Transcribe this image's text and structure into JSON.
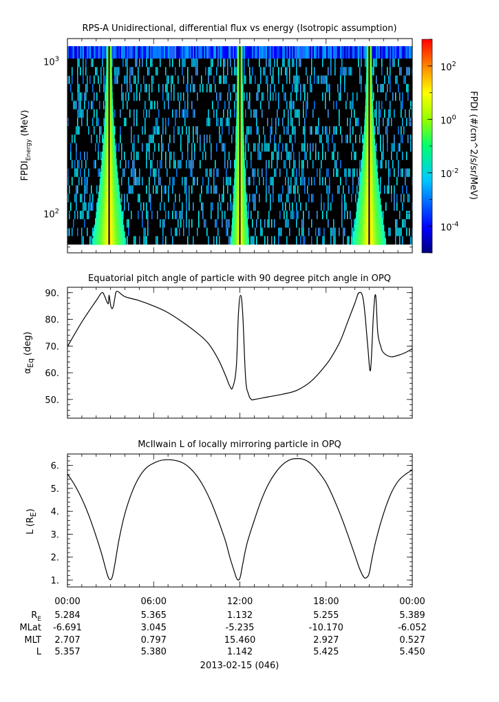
{
  "chart_data": [
    {
      "type": "heatmap",
      "title": "RPS-A Unidirectional, differential flux vs energy (Isotropic assumption)",
      "ylabel_main": "FPDI",
      "ylabel_sub": "Energy",
      "ylabel_unit": "(MeV)",
      "yscale": "log",
      "ylim": [
        55,
        1400
      ],
      "y_ticks": [
        {
          "value": 100,
          "base": "10",
          "exp": "2"
        },
        {
          "value": 1000,
          "base": "10",
          "exp": "3"
        }
      ],
      "colorbar": {
        "label": "FPDI (#/cm^2/s/sr/MeV)",
        "scale": "log",
        "range_exp": [
          -5,
          3
        ],
        "ticks": [
          {
            "exp": -4,
            "base": "10",
            "label": "-4"
          },
          {
            "exp": -2,
            "base": "10",
            "label": "-2"
          },
          {
            "exp": 0,
            "base": "10",
            "label": "0"
          },
          {
            "exp": 2,
            "base": "10",
            "label": "2"
          }
        ]
      },
      "bright_bands_hours": [
        2.9,
        12.0,
        21.0
      ]
    },
    {
      "type": "line",
      "title": "Equatorial pitch angle of particle with 90 degree pitch angle in OPQ",
      "ylabel": "α",
      "ylabel_sub": "Eq",
      "ylabel_unit": "(deg)",
      "ylim": [
        43,
        92
      ],
      "y_ticks": [
        50,
        60,
        70,
        80,
        90
      ],
      "y_tick_labels": [
        "50.",
        "60.",
        "70.",
        "80.",
        "90."
      ],
      "x_hours": [
        0,
        1,
        2,
        2.4,
        2.6,
        2.75,
        2.85,
        2.9,
        3.0,
        3.1,
        3.2,
        3.3,
        3.45,
        4,
        5,
        6,
        7,
        8,
        9,
        9.8,
        10.5,
        11,
        11.3,
        11.5,
        11.75,
        11.9,
        12.05,
        12.2,
        12.4,
        12.6,
        12.8,
        13,
        14,
        15,
        16,
        17,
        18,
        18.5,
        19,
        19.5,
        20,
        20.3,
        20.6,
        20.9,
        21.05,
        21.15,
        21.3,
        21.45,
        21.6,
        21.8,
        22,
        22.5,
        23,
        23.5,
        24
      ],
      "values": [
        69.8,
        79,
        87,
        90,
        88.5,
        86.5,
        86,
        89,
        85.5,
        84,
        85,
        88,
        90.5,
        88.5,
        87,
        85,
        82.5,
        79,
        75,
        71,
        65,
        59,
        55,
        54.5,
        62,
        82,
        89,
        82,
        58,
        52,
        50,
        50,
        51,
        52,
        53.5,
        57,
        63,
        67,
        72,
        79,
        86,
        90,
        87,
        70,
        61,
        65,
        82,
        89,
        75,
        70,
        67.5,
        66,
        66.5,
        67.5,
        69
      ]
    },
    {
      "type": "line",
      "title": "McIlwain L of locally mirroring particle in OPQ",
      "ylabel": "L",
      "ylabel_inner": "R",
      "ylabel_inner_sub": "E",
      "ylim": [
        0.7,
        6.5
      ],
      "y_ticks": [
        1,
        2,
        3,
        4,
        5,
        6
      ],
      "y_tick_labels": [
        "1.",
        "2.",
        "3.",
        "4.",
        "5.",
        "6."
      ],
      "x_hours": [
        0,
        0.5,
        1,
        1.5,
        2,
        2.4,
        2.7,
        2.9,
        3.1,
        3.3,
        3.6,
        4,
        4.5,
        5,
        5.5,
        6,
        6.5,
        7,
        7.5,
        8,
        8.5,
        9,
        9.5,
        10,
        10.5,
        11,
        11.3,
        11.6,
        11.8,
        12,
        12.2,
        12.5,
        13,
        13.5,
        14,
        14.5,
        15,
        15.5,
        16,
        16.5,
        17,
        17.5,
        18,
        18.5,
        19,
        19.5,
        20,
        20.3,
        20.6,
        20.8,
        21,
        21.2,
        21.5,
        22,
        22.5,
        23,
        23.5,
        24
      ],
      "values": [
        5.63,
        5.15,
        4.55,
        3.8,
        2.9,
        2.1,
        1.4,
        1.05,
        1.1,
        1.7,
        2.8,
        3.9,
        4.85,
        5.5,
        5.9,
        6.1,
        6.22,
        6.25,
        6.22,
        6.12,
        5.9,
        5.55,
        5.05,
        4.4,
        3.6,
        2.7,
        2.0,
        1.4,
        1.05,
        1.08,
        1.7,
        2.6,
        3.6,
        4.5,
        5.2,
        5.7,
        6.05,
        6.25,
        6.3,
        6.25,
        6.05,
        5.7,
        5.25,
        4.6,
        3.85,
        3.0,
        2.1,
        1.55,
        1.15,
        1.1,
        1.3,
        1.95,
        2.8,
        3.9,
        4.75,
        5.3,
        5.6,
        5.8
      ]
    }
  ],
  "x_axis": {
    "tick_labels": [
      "00:00",
      "06:00",
      "12:00",
      "18:00",
      "00:00"
    ],
    "row_labels": [
      "R",
      "MLat",
      "MLT",
      "L"
    ],
    "row_label_sub": [
      "E",
      "",
      "",
      ""
    ],
    "rows": [
      [
        "5.284",
        "5.365",
        "1.132",
        "5.255",
        "5.389"
      ],
      [
        "-6.691",
        "3.045",
        "-5.235",
        "-10.170",
        "-6.052"
      ],
      [
        "2.707",
        "0.797",
        "15.460",
        "2.927",
        "0.527"
      ],
      [
        "5.357",
        "5.380",
        "1.142",
        "5.425",
        "5.450"
      ]
    ],
    "date_label": "2013-02-15 (046)"
  },
  "colors": {
    "line": "#000000",
    "background": "#ffffff"
  }
}
